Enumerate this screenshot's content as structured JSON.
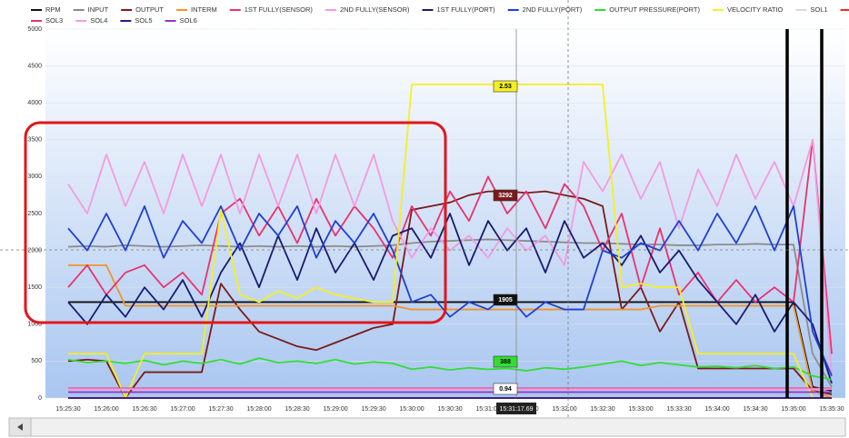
{
  "chart_data": {
    "type": "line",
    "categories": [
      "15:25:30",
      null,
      "15:26:00",
      null,
      "15:26:30",
      null,
      "15:27:00",
      null,
      "15:27:30",
      null,
      "15:28:00",
      null,
      "15:28:30",
      null,
      "15:29:00",
      null,
      "15:29:30",
      null,
      "15:30:00",
      null,
      "15:30:30",
      null,
      "15:31:00",
      null,
      "15:31:30",
      null,
      "15:32:00",
      null,
      "15:32:30",
      null,
      "15:33:00",
      null,
      "15:33:30",
      null,
      "15:34:00",
      null,
      "15:34:30",
      null,
      "15:35:00",
      null,
      "15:35:30"
    ],
    "ylim": [
      0,
      5000
    ],
    "yticks": [
      0,
      500,
      1000,
      1500,
      2000,
      2500,
      3000,
      3500,
      4000,
      4500,
      5000
    ],
    "grid": true,
    "cursor_time": "15:31:17.69",
    "annotations": [
      "2.53",
      "3292",
      "1905",
      "388",
      "0.94"
    ],
    "series": [
      {
        "name": "RPM",
        "color": "#111111",
        "values": [
          1300,
          1300,
          1300,
          1300,
          1300,
          1300,
          1300,
          1300,
          1300,
          1300,
          1300,
          1300,
          1300,
          1300,
          1300,
          1300,
          1300,
          1300,
          1300,
          1300,
          1300,
          1300,
          1300,
          1300,
          1300,
          1300,
          1300,
          1300,
          1300,
          1300,
          1300,
          1300,
          1300,
          1300,
          1300,
          1300,
          1300,
          1300,
          1300,
          150,
          100
        ]
      },
      {
        "name": "INPUT",
        "color": "#8c8c8c",
        "values": [
          2050,
          2060,
          2050,
          2070,
          2060,
          2050,
          2060,
          2070,
          2060,
          2050,
          2060,
          2050,
          2060,
          2050,
          2060,
          2050,
          2060,
          2070,
          2100,
          2120,
          2130,
          2140,
          2150,
          2140,
          2130,
          2120,
          2110,
          2100,
          2100,
          2090,
          2080,
          2080,
          2070,
          2070,
          2080,
          2080,
          2090,
          2080,
          2080,
          600,
          150
        ]
      },
      {
        "name": "OUTPUT",
        "color": "#7a1a1a",
        "values": [
          500,
          520,
          500,
          0,
          350,
          350,
          350,
          350,
          1550,
          1200,
          900,
          800,
          700,
          650,
          750,
          850,
          950,
          1000,
          2550,
          2600,
          2650,
          2750,
          2800,
          2800,
          2780,
          2800,
          2750,
          2700,
          2600,
          1200,
          1500,
          900,
          1300,
          400,
          400,
          400,
          400,
          400,
          400,
          100,
          50
        ]
      },
      {
        "name": "INTERM",
        "color": "#f0952a",
        "values": [
          1800,
          1800,
          1800,
          1250,
          1250,
          1250,
          1250,
          1250,
          1250,
          1250,
          1250,
          1250,
          1250,
          1250,
          1250,
          1250,
          1250,
          1250,
          1200,
          1200,
          1200,
          1200,
          1200,
          1200,
          1200,
          1200,
          1200,
          1200,
          1200,
          1200,
          1200,
          1250,
          1250,
          1250,
          1250,
          1250,
          1250,
          1250,
          1250,
          100,
          0
        ]
      },
      {
        "name": "1ST FULLY(SENSOR)",
        "color": "#e8336e",
        "values": [
          1500,
          1800,
          1400,
          1700,
          1800,
          1500,
          1700,
          1400,
          2500,
          2700,
          2200,
          2600,
          2100,
          2700,
          2200,
          2600,
          2300,
          1900,
          2600,
          2200,
          2800,
          2400,
          3000,
          2500,
          2800,
          2300,
          2900,
          2600,
          2000,
          2500,
          1500,
          2300,
          1400,
          1700,
          1300,
          1600,
          1300,
          1500,
          1300,
          3500,
          600
        ]
      },
      {
        "name": "2ND FULLY(SENSOR)",
        "color": "#f39ae0",
        "values": [
          2900,
          2500,
          3300,
          2600,
          3200,
          2500,
          3300,
          2600,
          3300,
          2500,
          3300,
          2600,
          3300,
          2500,
          3300,
          2600,
          3300,
          2400,
          1900,
          2300,
          2000,
          2200,
          1900,
          2300,
          2000,
          2200,
          1800,
          3200,
          2800,
          3300,
          2700,
          3200,
          2300,
          3100,
          2600,
          3300,
          2700,
          3200,
          2600,
          3500,
          300
        ]
      },
      {
        "name": "1ST FULLY(PORT)",
        "color": "#1a1a6e",
        "values": [
          1300,
          1000,
          1400,
          1100,
          1500,
          1200,
          1600,
          1100,
          1700,
          2100,
          1500,
          2200,
          1600,
          2300,
          1700,
          2100,
          1600,
          2200,
          2300,
          1900,
          2500,
          1800,
          2400,
          2000,
          2300,
          1700,
          2400,
          1900,
          2100,
          1800,
          2200,
          1700,
          2000,
          1600,
          1300,
          1000,
          1400,
          900,
          1300,
          1000,
          200
        ]
      },
      {
        "name": "2ND FULLY(PORT)",
        "color": "#1f3fd6",
        "values": [
          2300,
          2000,
          2500,
          2000,
          2600,
          1900,
          2400,
          2100,
          2600,
          2000,
          2500,
          2200,
          2600,
          1900,
          2400,
          2100,
          2500,
          2000,
          1300,
          1400,
          1100,
          1300,
          1200,
          1400,
          1100,
          1300,
          1200,
          1200,
          2000,
          1900,
          2100,
          2000,
          2400,
          2000,
          2500,
          2100,
          2600,
          2000,
          2600,
          900,
          300
        ]
      },
      {
        "name": "OUTPUT PRESSURE(PORT)",
        "color": "#33dd33",
        "values": [
          520,
          480,
          500,
          470,
          510,
          450,
          500,
          470,
          520,
          460,
          540,
          480,
          500,
          470,
          520,
          460,
          490,
          470,
          390,
          420,
          380,
          410,
          388,
          400,
          370,
          410,
          390,
          420,
          460,
          500,
          440,
          480,
          450,
          420,
          430,
          410,
          440,
          400,
          420,
          300,
          250
        ]
      },
      {
        "name": "VELOCITY RATIO",
        "color": "#f5f020",
        "values": [
          600,
          600,
          600,
          0,
          600,
          600,
          600,
          600,
          2550,
          1400,
          1300,
          1450,
          1350,
          1500,
          1400,
          1350,
          1300,
          1300,
          4250,
          4250,
          4250,
          4250,
          4250,
          4250,
          4250,
          4250,
          4250,
          4250,
          4250,
          1500,
          1550,
          1500,
          1500,
          600,
          600,
          600,
          600,
          600,
          600,
          0,
          0
        ]
      },
      {
        "name": "SOL1",
        "color": "#d9d9d9",
        "values": [
          0,
          0,
          0,
          0,
          0,
          0,
          0,
          0,
          0,
          0,
          0,
          0,
          0,
          0,
          0,
          0,
          0,
          0,
          0,
          0,
          0,
          0,
          0,
          0,
          0,
          0,
          0,
          0,
          0,
          0,
          0,
          0,
          0,
          0,
          0,
          0,
          0,
          0,
          0,
          0,
          0
        ]
      },
      {
        "name": "SOL2",
        "color": "#e03030",
        "values": [
          0,
          0,
          0,
          0,
          0,
          0,
          0,
          0,
          0,
          0,
          0,
          0,
          0,
          0,
          0,
          0,
          0,
          0,
          0,
          0,
          0,
          0,
          0,
          0,
          0,
          0,
          0,
          0,
          0,
          0,
          0,
          0,
          0,
          0,
          0,
          0,
          0,
          0,
          0,
          0,
          0
        ]
      },
      {
        "name": "SOL3",
        "color": "#e8336e",
        "values": [
          130,
          130,
          130,
          130,
          130,
          130,
          130,
          130,
          130,
          130,
          130,
          130,
          130,
          130,
          130,
          130,
          130,
          130,
          130,
          130,
          130,
          130,
          130,
          130,
          130,
          130,
          130,
          130,
          130,
          130,
          130,
          130,
          130,
          130,
          130,
          130,
          130,
          130,
          130,
          130,
          130
        ]
      },
      {
        "name": "SOL4",
        "color": "#f39ae0",
        "values": [
          120,
          120,
          120,
          120,
          120,
          120,
          120,
          120,
          120,
          120,
          120,
          120,
          120,
          120,
          120,
          120,
          120,
          120,
          120,
          120,
          120,
          120,
          120,
          120,
          120,
          120,
          120,
          120,
          120,
          120,
          120,
          120,
          120,
          120,
          120,
          120,
          120,
          120,
          120,
          120,
          120
        ]
      },
      {
        "name": "SOL5",
        "color": "#2a1a7e",
        "values": [
          0,
          0,
          0,
          0,
          0,
          0,
          0,
          0,
          0,
          0,
          0,
          0,
          0,
          0,
          0,
          0,
          0,
          0,
          0,
          0,
          0,
          0,
          0,
          0,
          0,
          0,
          0,
          0,
          0,
          0,
          0,
          0,
          0,
          0,
          0,
          0,
          0,
          0,
          0,
          0,
          0
        ]
      },
      {
        "name": "SOL6",
        "color": "#9b30c0",
        "values": [
          80,
          80,
          80,
          80,
          80,
          80,
          80,
          80,
          80,
          80,
          80,
          80,
          80,
          80,
          80,
          80,
          80,
          80,
          80,
          80,
          80,
          80,
          80,
          80,
          80,
          80,
          80,
          80,
          80,
          80,
          80,
          80,
          80,
          80,
          80,
          80,
          80,
          80,
          80,
          80,
          80
        ]
      }
    ]
  }
}
